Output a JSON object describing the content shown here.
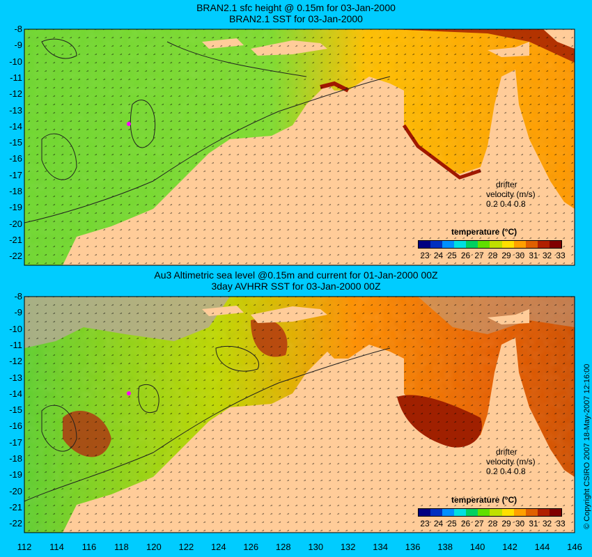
{
  "top_panel": {
    "title_line1": "BRAN2.1 sfc height @ 0.15m for 03-Jan-2000",
    "title_line2": "BRAN2.1 SST for 03-Jan-2000",
    "drifter_label": "drifter",
    "velocity_label": "velocity (m/s)",
    "velocity_scale": "0.2 0.4 0.8",
    "colorbar_title": "temperature (°C)"
  },
  "bottom_panel": {
    "title_line1": "Au3 Altimetric sea level  @0.15m and current for 01-Jan-2000 00Z",
    "title_line2": "3day AVHRR SST for 03-Jan-2000 00Z",
    "drifter_label": "drifter",
    "velocity_label": "velocity (m/s)",
    "velocity_scale": "0.2 0.4 0.8",
    "colorbar_title": "temperature (°C)"
  },
  "y_ticks": [
    "-8",
    "-9",
    "-10",
    "-11",
    "-12",
    "-13",
    "-14",
    "-15",
    "-16",
    "-17",
    "-18",
    "-19",
    "-20",
    "-21",
    "-22"
  ],
  "x_ticks": [
    "112",
    "114",
    "116",
    "118",
    "120",
    "122",
    "124",
    "126",
    "128",
    "130",
    "132",
    "134",
    "136",
    "138",
    "140",
    "142",
    "144",
    "146"
  ],
  "colorbar_ticks": [
    "23",
    "24",
    "25",
    "26",
    "27",
    "28",
    "29",
    "30",
    "31",
    "32",
    "33"
  ],
  "colorbar_colors": [
    "#000080",
    "#0030c0",
    "#0090ff",
    "#00e0e0",
    "#00d060",
    "#60e000",
    "#c0e000",
    "#ffe000",
    "#ffa000",
    "#e06000",
    "#b02000",
    "#800000"
  ],
  "colors": {
    "background": "#00ccff",
    "land": "#ffcc99",
    "no_data": "#b8a898"
  },
  "copyright": "© Copyright CSIRO 2007  18-May-2007 12:16:00"
}
